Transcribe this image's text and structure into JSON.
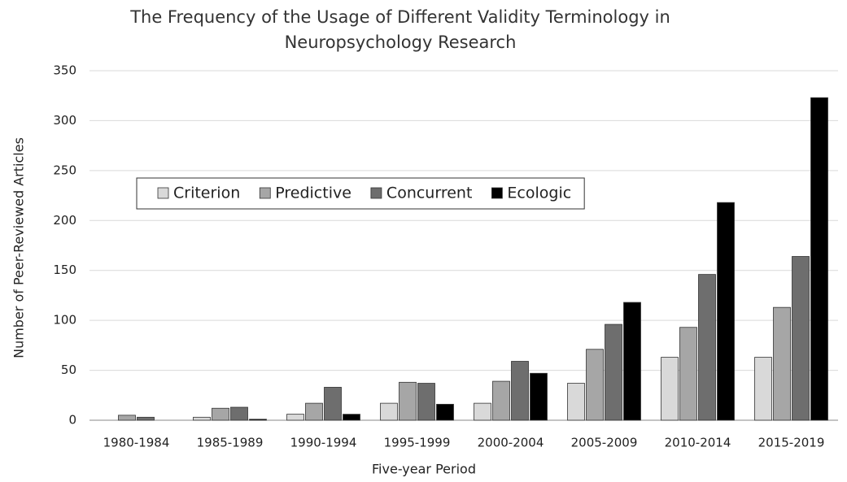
{
  "chart_data": {
    "type": "bar",
    "title": [
      "The Frequency of the Usage of Different Validity Terminology in",
      "Neuropsychology Research"
    ],
    "xlabel": "Five-year Period",
    "ylabel": "Number of Peer-Reviewed Articles",
    "categories": [
      "1980-1984",
      "1985-1989",
      "1990-1994",
      "1995-1999",
      "2000-2004",
      "2005-2009",
      "2010-2014",
      "2015-2019"
    ],
    "series": [
      {
        "name": "Criterion",
        "color": "#d9d9d9",
        "values": [
          0,
          3,
          6,
          17,
          17,
          37,
          63,
          63
        ]
      },
      {
        "name": "Predictive",
        "color": "#a6a6a6",
        "values": [
          5,
          12,
          17,
          38,
          39,
          71,
          93,
          113
        ]
      },
      {
        "name": "Concurrent",
        "color": "#6e6e6e",
        "values": [
          3,
          13,
          33,
          37,
          59,
          96,
          146,
          164
        ]
      },
      {
        "name": "Ecologic",
        "color": "#000000",
        "values": [
          0,
          1,
          6,
          16,
          47,
          118,
          218,
          323
        ]
      }
    ],
    "ylim": [
      0,
      350
    ],
    "yticks": [
      0,
      50,
      100,
      150,
      200,
      250,
      300,
      350
    ],
    "grid": true,
    "legend": "upper left"
  }
}
